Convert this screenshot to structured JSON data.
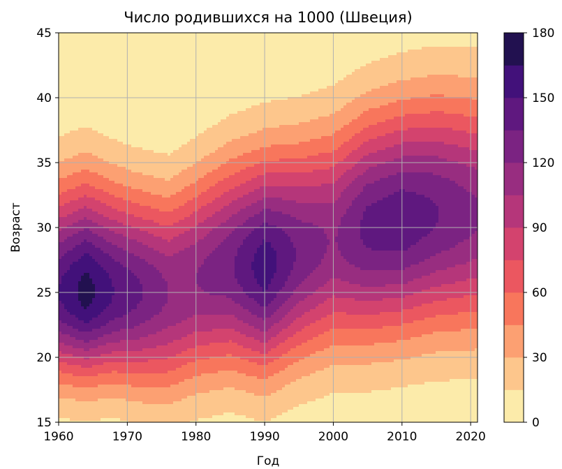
{
  "chart_data": {
    "type": "heatmap",
    "subtype": "filled-contour",
    "title": "Число родившихся на 1000  (Швеция)",
    "xlabel": "Год",
    "ylabel": "Возраст",
    "xlim": [
      1960,
      2021
    ],
    "ylim": [
      15,
      45
    ],
    "x_ticks": [
      "1960",
      "1970",
      "1980",
      "1990",
      "2000",
      "2010",
      "2020"
    ],
    "y_ticks": [
      "15",
      "20",
      "25",
      "30",
      "35",
      "40",
      "45"
    ],
    "grid": true,
    "colorbar": {
      "range": [
        0,
        180
      ],
      "levels": [
        0,
        15,
        30,
        45,
        60,
        75,
        90,
        105,
        120,
        135,
        150,
        165,
        180
      ],
      "ticks": [
        "0",
        "30",
        "60",
        "90",
        "120",
        "150",
        "180"
      ],
      "colors": [
        "#fcebaa",
        "#fdc68c",
        "#fca072",
        "#f8765c",
        "#eb5760",
        "#d3436e",
        "#b5367a",
        "#982d80",
        "#7b2382",
        "#5f187f",
        "#42117a",
        "#221150",
        "#0a0a24"
      ]
    },
    "series": [
      {
        "x": [
          1960,
          1964,
          1968,
          1971,
          1976,
          1980,
          1985,
          1990,
          1995,
          2000,
          2005,
          2010,
          2015,
          2021
        ],
        "peak_age": [
          25,
          25,
          25,
          25,
          25,
          26,
          27,
          27,
          28,
          29,
          30,
          30.5,
          31,
          31
        ],
        "peak_rate": [
          150,
          172,
          150,
          140,
          120,
          120,
          132,
          160,
          132,
          118,
          140,
          146,
          136,
          122
        ],
        "spread_lower": [
          4.5,
          4.5,
          4.5,
          4.8,
          5.2,
          5.3,
          5.4,
          5.5,
          5.6,
          5.8,
          6.0,
          6.0,
          6.1,
          6.2
        ],
        "spread_upper": [
          5.6,
          5.8,
          5.5,
          5.3,
          5.2,
          5.4,
          5.6,
          5.8,
          5.8,
          5.9,
          6.0,
          6.1,
          6.2,
          6.3
        ]
      }
    ]
  }
}
